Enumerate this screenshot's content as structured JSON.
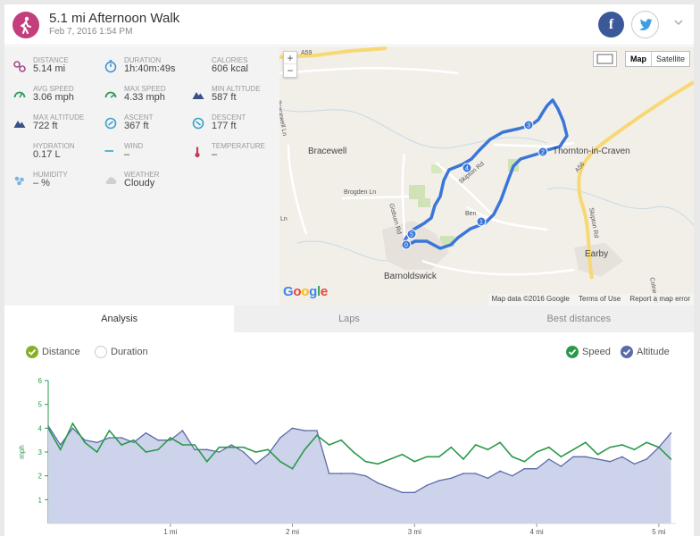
{
  "header": {
    "title": "5.1 mi Afternoon Walk",
    "subtitle": "Feb 7, 2016 1:54 PM",
    "facebook_label": "f"
  },
  "stats": [
    {
      "label": "DISTANCE",
      "value": "5.14 mi",
      "icon": "distance-icon",
      "color": "#a64c8f"
    },
    {
      "label": "DURATION",
      "value": "1h:40m:49s",
      "icon": "stopwatch-icon",
      "color": "#3b8ed1"
    },
    {
      "label": "CALORIES",
      "value": "606 kcal",
      "icon": "flame-icon",
      "color": "#e0652b"
    },
    {
      "label": "AVG SPEED",
      "value": "3.06 mph",
      "icon": "gauge-icon",
      "color": "#2e9a57"
    },
    {
      "label": "MAX SPEED",
      "value": "4.33 mph",
      "icon": "gauge-max-icon",
      "color": "#2e9a57"
    },
    {
      "label": "MIN ALTITUDE",
      "value": "587 ft",
      "icon": "mountain-icon",
      "color": "#3a4f86"
    },
    {
      "label": "MAX ALTITUDE",
      "value": "722 ft",
      "icon": "mountain-icon",
      "color": "#3a4f86"
    },
    {
      "label": "ASCENT",
      "value": "367 ft",
      "icon": "ascent-icon",
      "color": "#3aa0c8"
    },
    {
      "label": "DESCENT",
      "value": "177 ft",
      "icon": "descent-icon",
      "color": "#3aa0c8"
    },
    {
      "label": "HYDRATION",
      "value": "0.17 L",
      "icon": "droplets-icon",
      "color": "#7fb3e3"
    },
    {
      "label": "WIND",
      "value": "–",
      "icon": "wind-icon",
      "color": "#3aa0c8"
    },
    {
      "label": "TEMPERATURE",
      "value": "–",
      "icon": "thermometer-icon",
      "color": "#c33e5a"
    },
    {
      "label": "HUMIDITY",
      "value": "– %",
      "icon": "humidity-icon",
      "color": "#7fb3e3"
    },
    {
      "label": "WEATHER",
      "value": "Cloudy",
      "icon": "cloud-icon",
      "color": "#cfcfcf"
    }
  ],
  "map": {
    "zoom_in": "+",
    "zoom_out": "−",
    "type_map": "Map",
    "type_satellite": "Satellite",
    "logo": "Google",
    "attribution": "Map data ©2016 Google",
    "terms": "Terms of Use",
    "report": "Report a map error",
    "places": [
      "Bracewell",
      "Thornton-in-Craven",
      "Barnoldswick",
      "Earby"
    ],
    "roads": [
      "A59",
      "Bracewell Ln",
      "Brogden Ln",
      "Gisburn Rd",
      "Skipton Rd",
      "A56",
      "Skipton Rd",
      "Colne Rd",
      "Ben",
      "Ln"
    ],
    "markers": [
      "0",
      "1",
      "2",
      "3",
      "4",
      "5"
    ],
    "route_color": "#3a76d9"
  },
  "tabs": [
    "Analysis",
    "Laps",
    "Best distances"
  ],
  "toggles": {
    "distance": "Distance",
    "duration": "Duration",
    "speed": "Speed",
    "altitude": "Altitude"
  },
  "chart_data": {
    "type": "line",
    "ylabel": "mph",
    "ylim": [
      0,
      6
    ],
    "yticks": [
      "1",
      "2",
      "3",
      "4",
      "5",
      "6"
    ],
    "xlim": [
      0,
      5.14
    ],
    "xticks": [
      "1 mi",
      "2 mi",
      "3 mi",
      "4 mi",
      "5 mi"
    ],
    "x": [
      0,
      0.1,
      0.2,
      0.3,
      0.4,
      0.5,
      0.6,
      0.7,
      0.8,
      0.9,
      1.0,
      1.1,
      1.2,
      1.3,
      1.4,
      1.5,
      1.6,
      1.7,
      1.8,
      1.9,
      2.0,
      2.1,
      2.2,
      2.3,
      2.4,
      2.5,
      2.6,
      2.7,
      2.8,
      2.9,
      3.0,
      3.1,
      3.2,
      3.3,
      3.4,
      3.5,
      3.6,
      3.7,
      3.8,
      3.9,
      4.0,
      4.1,
      4.2,
      4.3,
      4.4,
      4.5,
      4.6,
      4.7,
      4.8,
      4.9,
      5.0,
      5.1
    ],
    "series": [
      {
        "name": "Speed",
        "color": "#2a9a4a",
        "values": [
          4.0,
          3.1,
          4.2,
          3.4,
          3.0,
          3.9,
          3.3,
          3.5,
          3.0,
          3.1,
          3.6,
          3.3,
          3.3,
          2.6,
          3.2,
          3.2,
          3.2,
          3.0,
          3.1,
          2.6,
          2.3,
          3.1,
          3.7,
          3.3,
          3.5,
          3.0,
          2.6,
          2.5,
          2.7,
          2.9,
          2.6,
          2.8,
          2.8,
          3.2,
          2.7,
          3.3,
          3.1,
          3.4,
          2.8,
          2.6,
          3.0,
          3.2,
          2.8,
          3.1,
          3.4,
          2.9,
          3.2,
          3.3,
          3.1,
          3.4,
          3.2,
          2.7
        ]
      },
      {
        "name": "Altitude",
        "color": "#5b6aa8",
        "values": [
          4.1,
          3.3,
          4.0,
          3.5,
          3.4,
          3.6,
          3.6,
          3.4,
          3.8,
          3.5,
          3.5,
          3.9,
          3.1,
          3.1,
          3.0,
          3.3,
          3.0,
          2.5,
          2.9,
          3.6,
          4.0,
          3.9,
          3.9,
          2.1,
          2.1,
          2.1,
          2.0,
          1.7,
          1.5,
          1.3,
          1.3,
          1.6,
          1.8,
          1.9,
          2.1,
          2.1,
          1.9,
          2.2,
          2.0,
          2.3,
          2.3,
          2.7,
          2.4,
          2.8,
          2.8,
          2.7,
          2.6,
          2.8,
          2.5,
          2.7,
          3.2,
          3.8
        ]
      }
    ],
    "legend": "top-right",
    "grid": false
  }
}
